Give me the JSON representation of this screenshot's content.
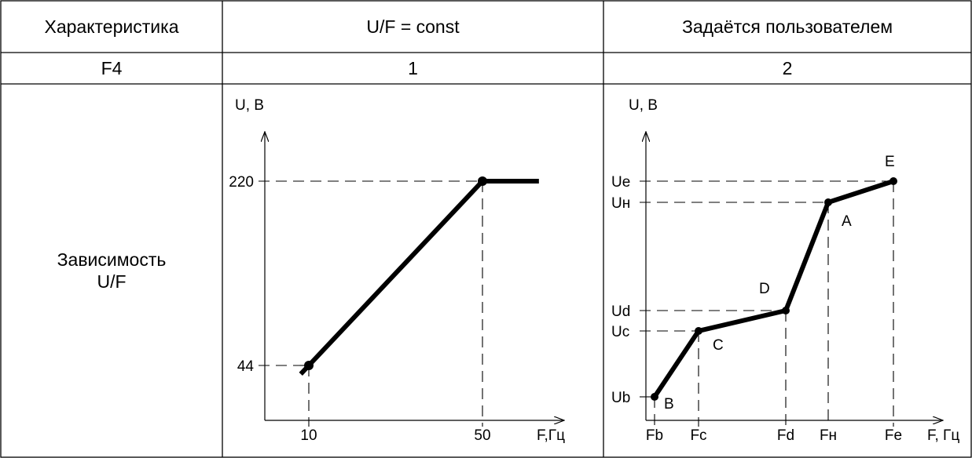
{
  "table": {
    "headers": [
      "Характеристика",
      "U/F = const",
      "Задаётся пользователем"
    ],
    "row_param": [
      "F4",
      "1",
      "2"
    ],
    "row_label": "Зависимость\nU/F"
  },
  "chart_data": [
    {
      "type": "line",
      "title": "",
      "xlabel": "F,Гц",
      "ylabel": "U, В",
      "x_ticks": [
        "10",
        "50"
      ],
      "y_ticks": [
        "44",
        "220"
      ],
      "series": [
        {
          "x": [
            10,
            50,
            63
          ],
          "y": [
            44,
            220,
            220
          ]
        }
      ],
      "points": [
        {
          "x": 10,
          "y": 44
        },
        {
          "x": 50,
          "y": 220
        }
      ]
    },
    {
      "type": "line",
      "title": "",
      "xlabel": "F, Гц",
      "ylabel": "U, В",
      "x_ticks": [
        "Fb",
        "Fc",
        "Fd",
        "Fн",
        "Fe"
      ],
      "y_ticks": [
        "Ub",
        "Uc",
        "Ud",
        "Uн",
        "Ue"
      ],
      "points": [
        {
          "label": "B",
          "x": "Fb",
          "y": "Ub"
        },
        {
          "label": "C",
          "x": "Fc",
          "y": "Uc"
        },
        {
          "label": "D",
          "x": "Fd",
          "y": "Ud"
        },
        {
          "label": "A",
          "x": "Fн",
          "y": "Uн"
        },
        {
          "label": "E",
          "x": "Fe",
          "y": "Ue"
        }
      ]
    }
  ]
}
